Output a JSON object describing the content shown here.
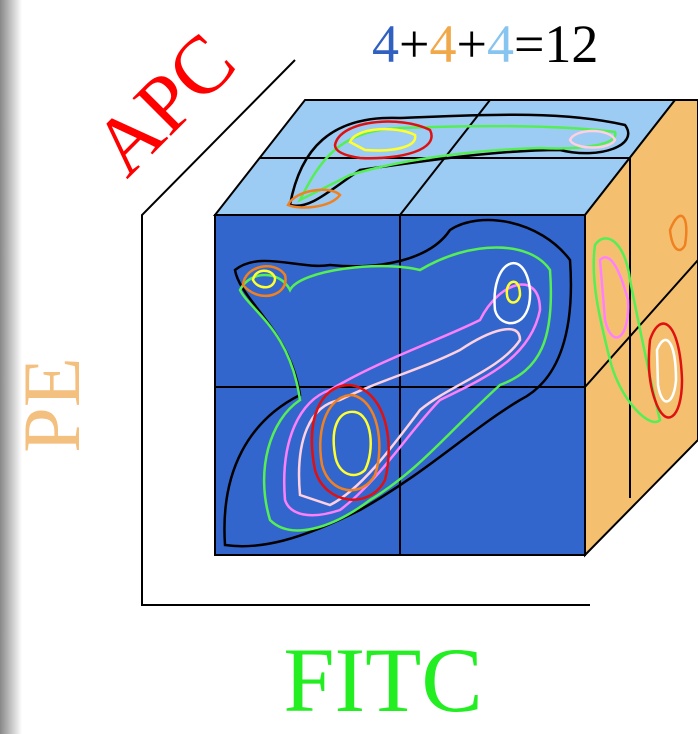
{
  "labels": {
    "apc": "APC",
    "pe": "PE",
    "fitc": "FITC"
  },
  "equation": {
    "parts": [
      {
        "text": "4",
        "color": "#3060c0"
      },
      {
        "text": "+",
        "color": "#000000"
      },
      {
        "text": "4",
        "color": "#f0a848"
      },
      {
        "text": "+",
        "color": "#000000"
      },
      {
        "text": "4",
        "color": "#88c4f0"
      },
      {
        "text": "=12",
        "color": "#000000"
      }
    ]
  }
}
